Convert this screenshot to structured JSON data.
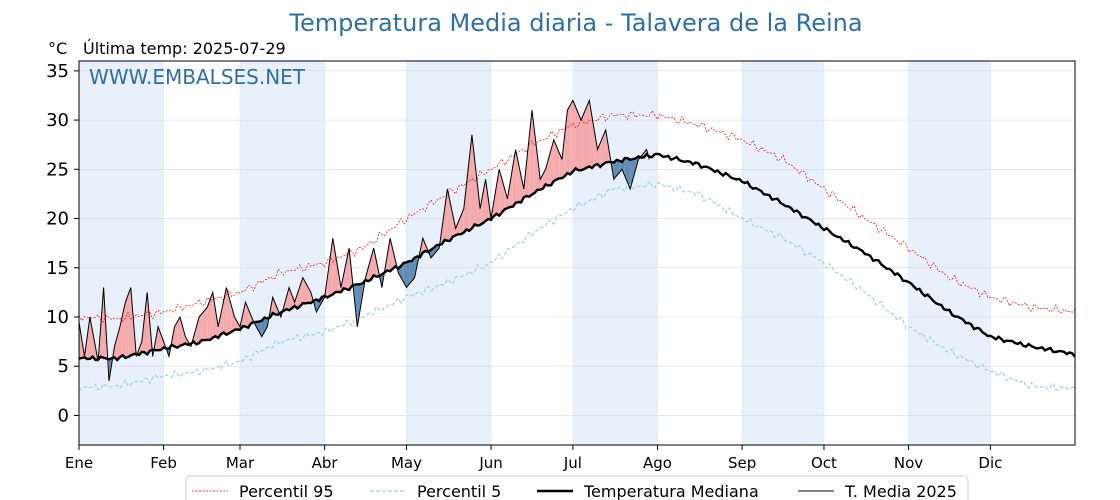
{
  "chart_data": {
    "type": "line",
    "title": "Temperatura Media diaria - Talavera de la Reina",
    "unit_label": "°C",
    "last_temp_label": "Última temp: 2025-07-29",
    "watermark": "WWW.EMBALSES.NET",
    "ylim": [
      -3,
      36
    ],
    "yticks": [
      0,
      5,
      10,
      15,
      20,
      25,
      30,
      35
    ],
    "month_labels": [
      "Ene",
      "Feb",
      "Mar",
      "Abr",
      "May",
      "Jun",
      "Jul",
      "Ago",
      "Sep",
      "Oct",
      "Nov",
      "Dic"
    ],
    "month_start_days": [
      1,
      32,
      60,
      91,
      121,
      152,
      182,
      213,
      244,
      274,
      305,
      335
    ],
    "x_max_day": 366,
    "grid": true,
    "legend_position": "bottom",
    "colors": {
      "p95": "#ff0000",
      "p5": "#9ccfe2",
      "median": "#000000",
      "current": "#000000",
      "above_fill": "#f4a9ac",
      "below_fill": "#5f8bb5",
      "band": "#e8f1fb",
      "title": "#2f6fa3"
    },
    "series": [
      {
        "name": "Percentil 95",
        "key": "p95",
        "days": [
          1,
          15,
          32,
          46,
          60,
          75,
          91,
          105,
          121,
          136,
          152,
          167,
          182,
          197,
          213,
          228,
          244,
          259,
          274,
          289,
          305,
          320,
          335,
          350,
          366
        ],
        "values": [
          10,
          9.8,
          10.5,
          11.5,
          12.5,
          14.5,
          15.5,
          17,
          20,
          22.5,
          25,
          27.5,
          29.5,
          30.5,
          30.5,
          29.5,
          28,
          26,
          23,
          20,
          17,
          14,
          12,
          11,
          10.5
        ]
      },
      {
        "name": "Percentil 5",
        "key": "p5",
        "days": [
          1,
          15,
          32,
          46,
          60,
          75,
          91,
          105,
          121,
          136,
          152,
          167,
          182,
          197,
          213,
          228,
          244,
          259,
          274,
          289,
          305,
          320,
          335,
          350,
          366
        ],
        "values": [
          2.8,
          3,
          4,
          4.5,
          5.5,
          7.5,
          8.5,
          10,
          12,
          13.5,
          15.5,
          18.5,
          21,
          23,
          23.5,
          22.5,
          20,
          18,
          15.5,
          12.5,
          9,
          6.5,
          4.5,
          3,
          2.7
        ]
      },
      {
        "name": "Temperatura Mediana",
        "key": "median",
        "days": [
          1,
          15,
          32,
          46,
          60,
          75,
          91,
          105,
          121,
          136,
          152,
          167,
          182,
          197,
          213,
          228,
          244,
          259,
          274,
          289,
          305,
          320,
          335,
          350,
          366
        ],
        "values": [
          5.8,
          5.8,
          6.8,
          7.5,
          8.8,
          10.5,
          12,
          13.5,
          15.5,
          17.8,
          20,
          22.5,
          24.8,
          25.8,
          26.5,
          25.5,
          23.8,
          21.5,
          19,
          16.5,
          13.5,
          10.5,
          8,
          7,
          6.2
        ]
      },
      {
        "name": "T. Media 2025",
        "key": "current",
        "days": [
          1,
          3,
          5,
          8,
          10,
          12,
          14,
          16,
          18,
          20,
          22,
          24,
          26,
          28,
          30,
          32,
          34,
          36,
          38,
          40,
          42,
          45,
          48,
          50,
          52,
          55,
          58,
          60,
          62,
          65,
          68,
          70,
          72,
          75,
          78,
          80,
          83,
          86,
          88,
          91,
          94,
          97,
          100,
          103,
          106,
          109,
          112,
          115,
          118,
          121,
          124,
          127,
          130,
          133,
          136,
          139,
          142,
          145,
          148,
          150,
          152,
          155,
          158,
          161,
          164,
          167,
          170,
          172,
          175,
          178,
          180,
          182,
          185,
          188,
          191,
          194,
          197,
          200,
          203,
          206,
          209,
          210
        ],
        "values": [
          9.5,
          6,
          10,
          5.5,
          13,
          3.5,
          7,
          9,
          11.5,
          13,
          6,
          7.5,
          12.5,
          6,
          9,
          7.5,
          6,
          9,
          10,
          8,
          7,
          10,
          11,
          12.5,
          9,
          13,
          10,
          9,
          11.5,
          9.5,
          8,
          9,
          12,
          10,
          13,
          11.5,
          14,
          12.5,
          10.5,
          12,
          18,
          13,
          17,
          9,
          14,
          17,
          13,
          18,
          14.5,
          13,
          14,
          18,
          16,
          17,
          23,
          19,
          21,
          28.5,
          21,
          24,
          20,
          25,
          22,
          27,
          23,
          31,
          24,
          25,
          28,
          26,
          31,
          32,
          30,
          32,
          27,
          29,
          24,
          25,
          23,
          26,
          27,
          26
        ]
      }
    ]
  }
}
